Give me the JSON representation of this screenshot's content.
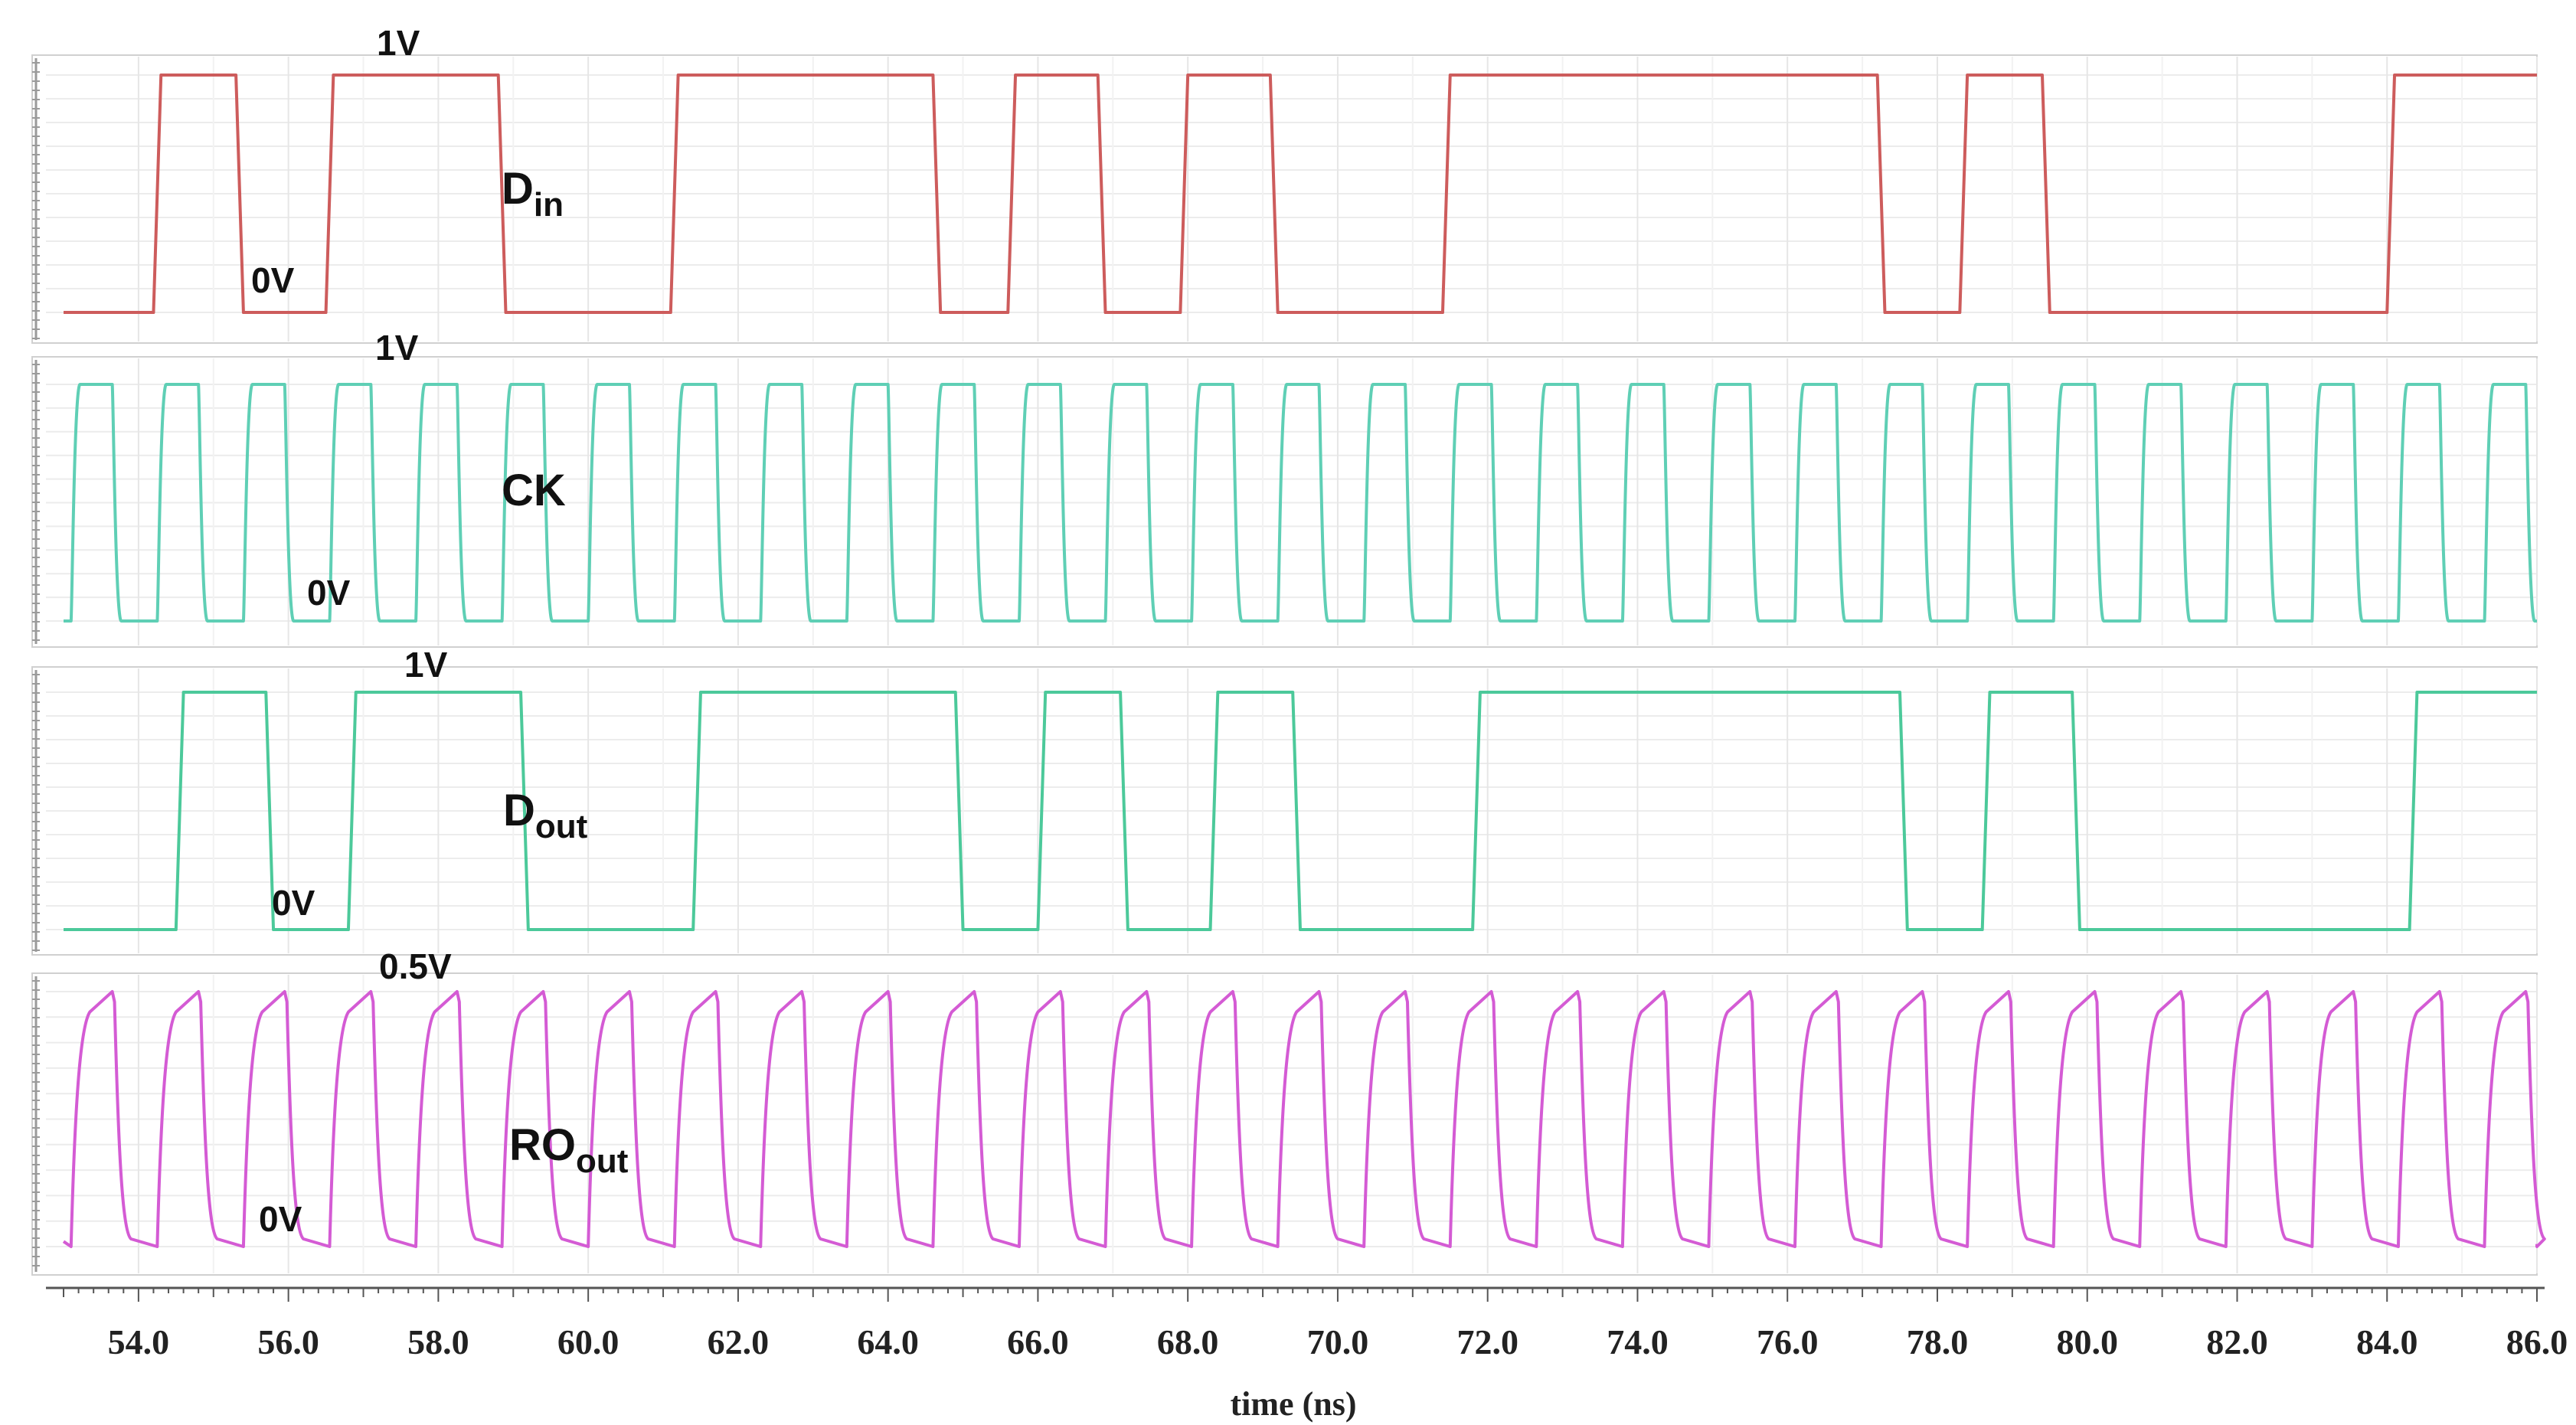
{
  "chart_data": {
    "type": "line",
    "xlabel": "time (ns)",
    "xlim": [
      53.0,
      86.0
    ],
    "x_ticks": [
      "54.0",
      "56.0",
      "58.0",
      "60.0",
      "62.0",
      "64.0",
      "66.0",
      "68.0",
      "70.0",
      "72.0",
      "74.0",
      "76.0",
      "78.0",
      "80.0",
      "82.0",
      "84.0",
      "86.0"
    ],
    "panels": [
      {
        "name_main": "D",
        "name_sub": "in",
        "color": "#cd5c5c",
        "high_label": "1V",
        "low_label": "0V",
        "ylim": [
          0,
          1
        ],
        "edges": [
          [
            53.0,
            0
          ],
          [
            54.2,
            1
          ],
          [
            55.3,
            0
          ],
          [
            56.5,
            1
          ],
          [
            58.8,
            0
          ],
          [
            61.1,
            1
          ],
          [
            64.6,
            0
          ],
          [
            65.6,
            1
          ],
          [
            66.8,
            0
          ],
          [
            67.9,
            1
          ],
          [
            69.1,
            0
          ],
          [
            71.4,
            1
          ],
          [
            77.2,
            0
          ],
          [
            78.3,
            1
          ],
          [
            79.4,
            0
          ],
          [
            84.0,
            1
          ]
        ]
      },
      {
        "name_main": "CK",
        "name_sub": "",
        "color": "#5fcfb5",
        "high_label": "1V",
        "low_label": "0V",
        "ylim": [
          0,
          1
        ],
        "clock": {
          "first_rise": 53.1,
          "period": 1.15,
          "high": 0.55,
          "count": 29
        }
      },
      {
        "name_main": "D",
        "name_sub": "out",
        "color": "#4cc99a",
        "high_label": "1V",
        "low_label": "0V",
        "ylim": [
          0,
          1
        ],
        "edges": [
          [
            53.0,
            0
          ],
          [
            54.5,
            1
          ],
          [
            55.7,
            0
          ],
          [
            56.8,
            1
          ],
          [
            59.1,
            0
          ],
          [
            61.4,
            1
          ],
          [
            64.9,
            0
          ],
          [
            66.0,
            1
          ],
          [
            67.1,
            0
          ],
          [
            68.3,
            1
          ],
          [
            69.4,
            0
          ],
          [
            71.8,
            1
          ],
          [
            77.5,
            0
          ],
          [
            78.6,
            1
          ],
          [
            79.8,
            0
          ],
          [
            84.3,
            1
          ]
        ]
      },
      {
        "name_main": "RO",
        "name_sub": "out",
        "color": "#d45bd4",
        "high_label": "0.5V",
        "low_label": "0V",
        "ylim": [
          0,
          0.5
        ],
        "oscillation": {
          "first_rise": 53.1,
          "period": 1.15,
          "count": 29
        }
      }
    ]
  }
}
